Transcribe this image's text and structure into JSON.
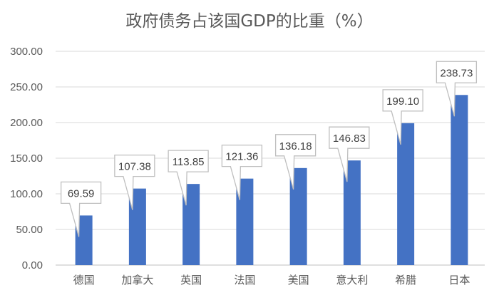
{
  "chart_data": {
    "type": "bar",
    "title": "政府债务占该国GDP的比重（%）",
    "categories": [
      "德国",
      "加拿大",
      "英国",
      "法国",
      "美国",
      "意大利",
      "希腊",
      "日本"
    ],
    "values": [
      69.59,
      107.38,
      113.85,
      121.36,
      136.18,
      146.83,
      199.1,
      238.73
    ],
    "data_labels": [
      "69.59",
      "107.38",
      "113.85",
      "121.36",
      "136.18",
      "146.83",
      "199.10",
      "238.73"
    ],
    "yticks": [
      "0.00",
      "50.00",
      "100.00",
      "150.00",
      "200.00",
      "250.00",
      "300.00"
    ],
    "ylim": [
      0,
      300
    ],
    "xlabel": "",
    "ylabel": "",
    "grid": true,
    "bar_color": "#4472C4"
  }
}
